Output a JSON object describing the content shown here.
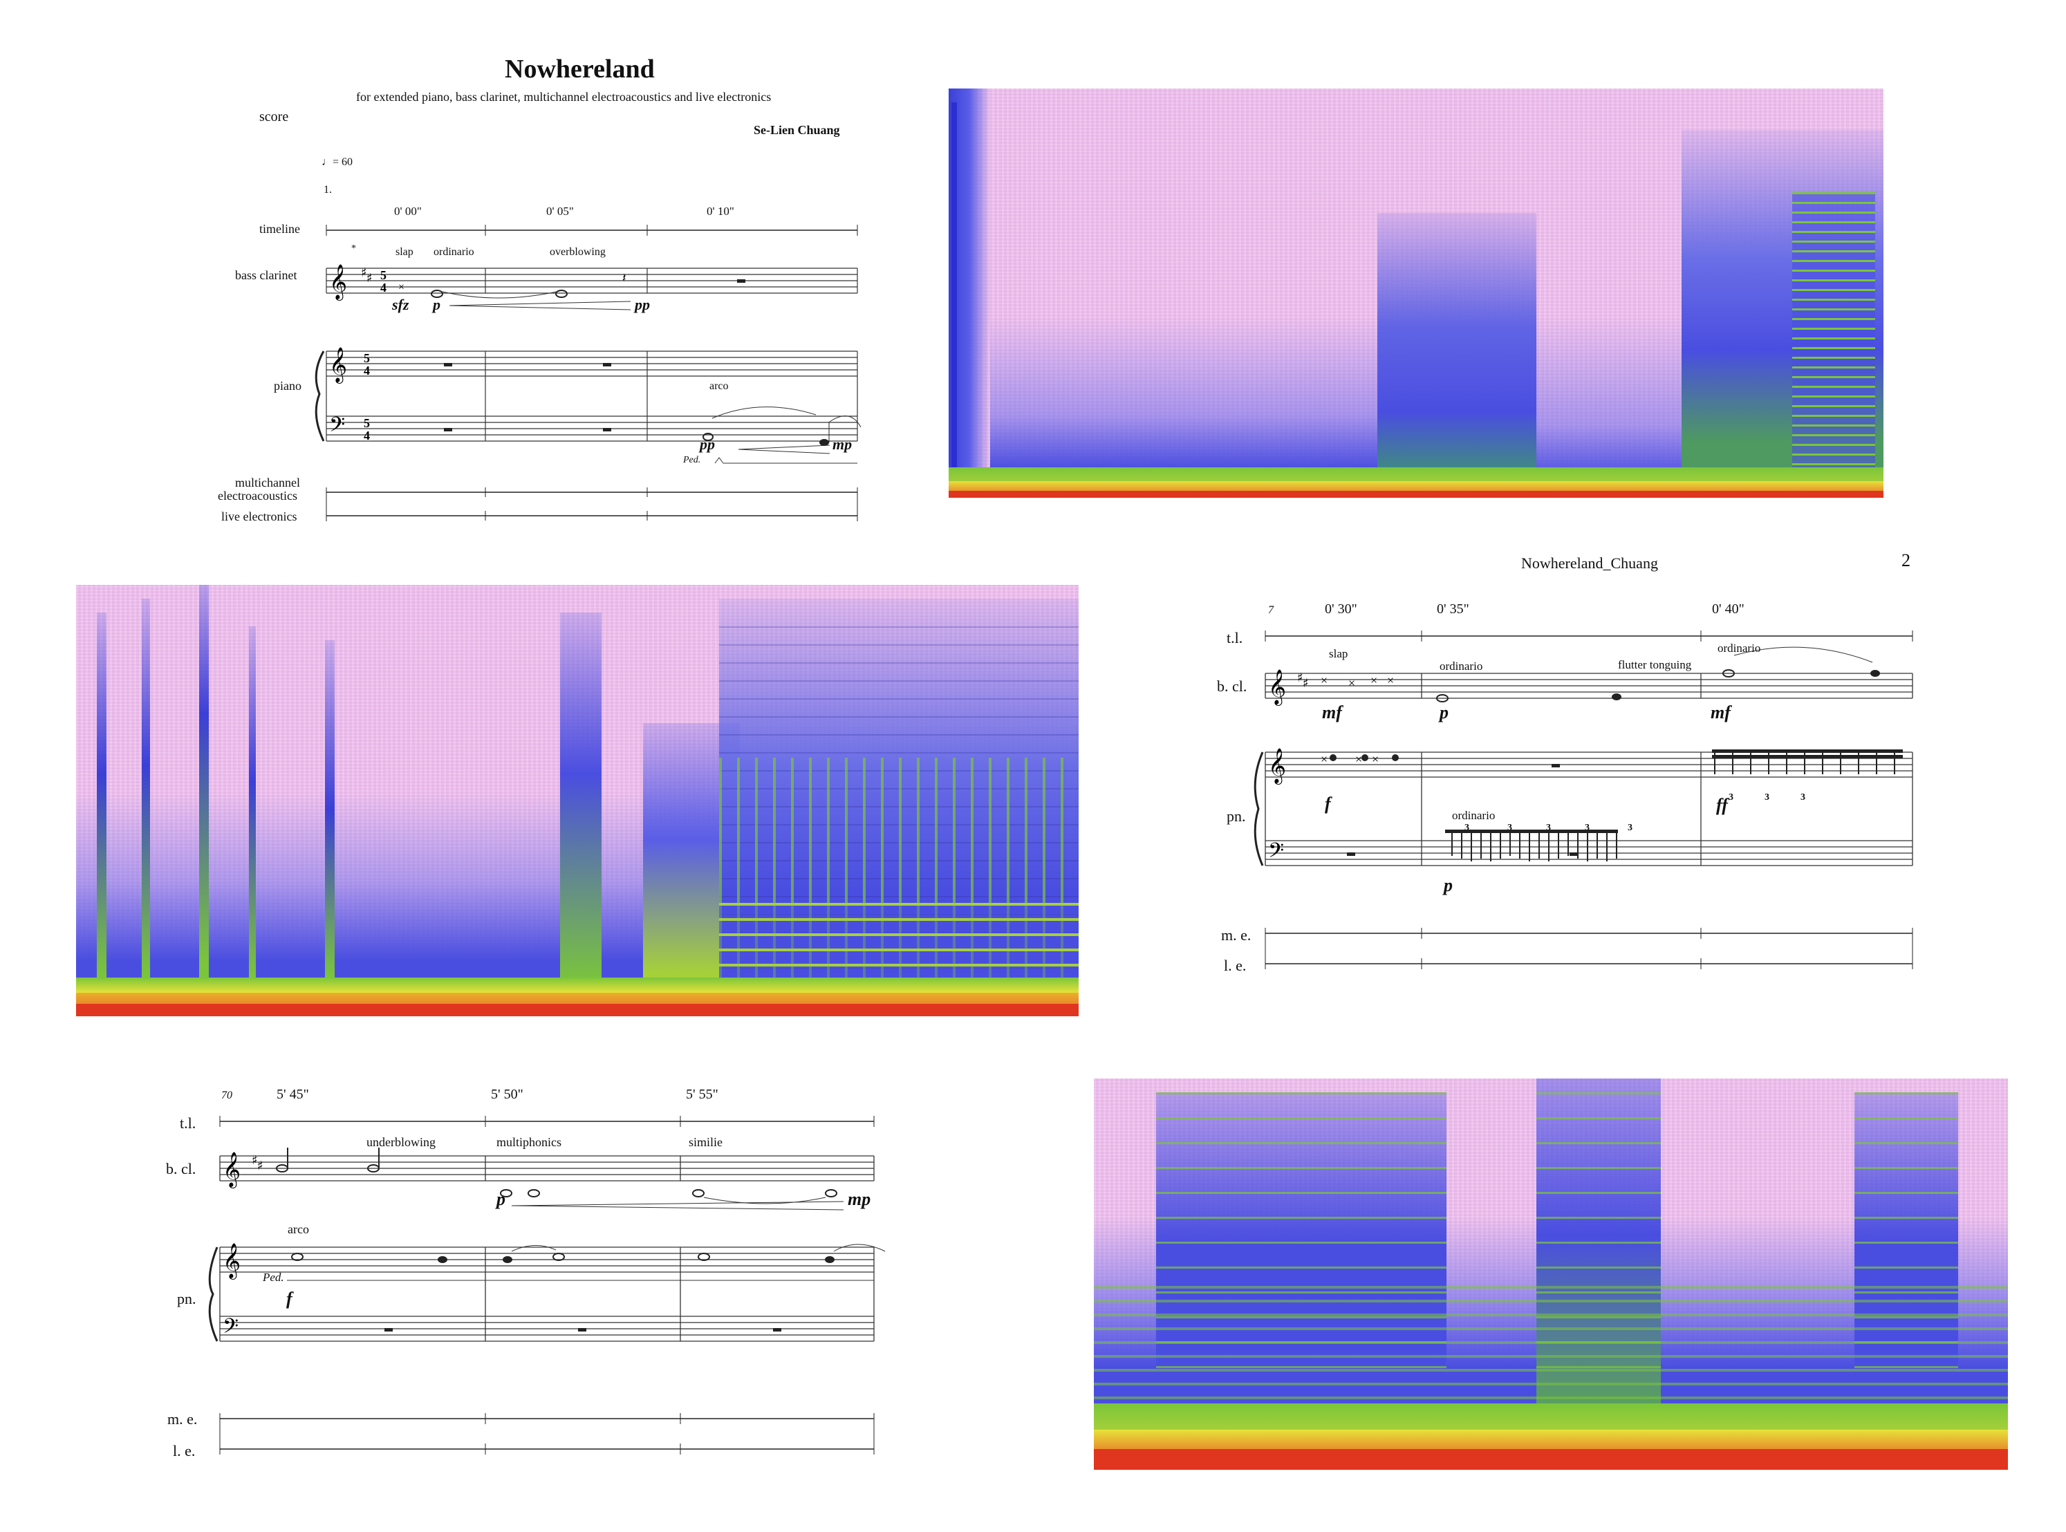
{
  "page1": {
    "title": "Nowhereland",
    "subtitle": "for extended piano, bass clarinet, multichannel electroacoustics and live electronics",
    "score_label": "score",
    "composer": "Se-Lien Chuang",
    "tempo": "= 60",
    "section": "1.",
    "times": [
      "0' 00\"",
      "0' 05\"",
      "0' 10\""
    ],
    "instruments": {
      "timeline": "timeline",
      "bass_clarinet": "bass clarinet",
      "piano": "piano",
      "me_line1": "multichannel",
      "me_line2": "electroacoustics",
      "live": "live electronics"
    },
    "techniques": {
      "slap": "slap",
      "ordinario": "ordinario",
      "overblowing": "overblowing",
      "arco": "arco"
    },
    "dynamics": {
      "sfz": "sfz",
      "p": "p",
      "pp": "pp",
      "pp2": "pp",
      "mp": "mp"
    },
    "ped": "Ped.",
    "asterisk": "*",
    "time_sig": "5\n4"
  },
  "page2": {
    "header": "Nowhereland_Chuang",
    "page_number": "2",
    "measure": "7",
    "times": [
      "0' 30\"",
      "0' 35\"",
      "0' 40\""
    ],
    "instruments": {
      "tl": "t.l.",
      "bcl": "b. cl.",
      "pn": "pn.",
      "me": "m. e.",
      "le": "l. e."
    },
    "techniques": {
      "slap": "slap",
      "ordinario": "ordinario",
      "flutter": "flutter tonguing",
      "ordinario2": "ordinario",
      "ordinario_pn": "ordinario"
    },
    "dynamics": {
      "mf": "mf",
      "p": "p",
      "mf2": "mf",
      "f": "f",
      "ff": "ff",
      "p2": "p"
    },
    "triplet": "3"
  },
  "page3": {
    "measure": "70",
    "times": [
      "5' 45\"",
      "5' 50\"",
      "5' 55\""
    ],
    "instruments": {
      "tl": "t.l.",
      "bcl": "b. cl.",
      "pn": "pn.",
      "me": "m. e.",
      "le": "l. e."
    },
    "techniques": {
      "underblowing": "underblowing",
      "multiphonics": "multiphonics",
      "similie": "similie",
      "arco": "arco"
    },
    "dynamics": {
      "p": "p",
      "mp": "mp",
      "f": "f"
    },
    "ped": "Ped."
  },
  "colors": {
    "spectrogram_bg": "#f1c3ee",
    "blue": "#4a4ee0",
    "green": "#7bc53a",
    "yellow": "#e6e23a",
    "red": "#e0351f"
  }
}
